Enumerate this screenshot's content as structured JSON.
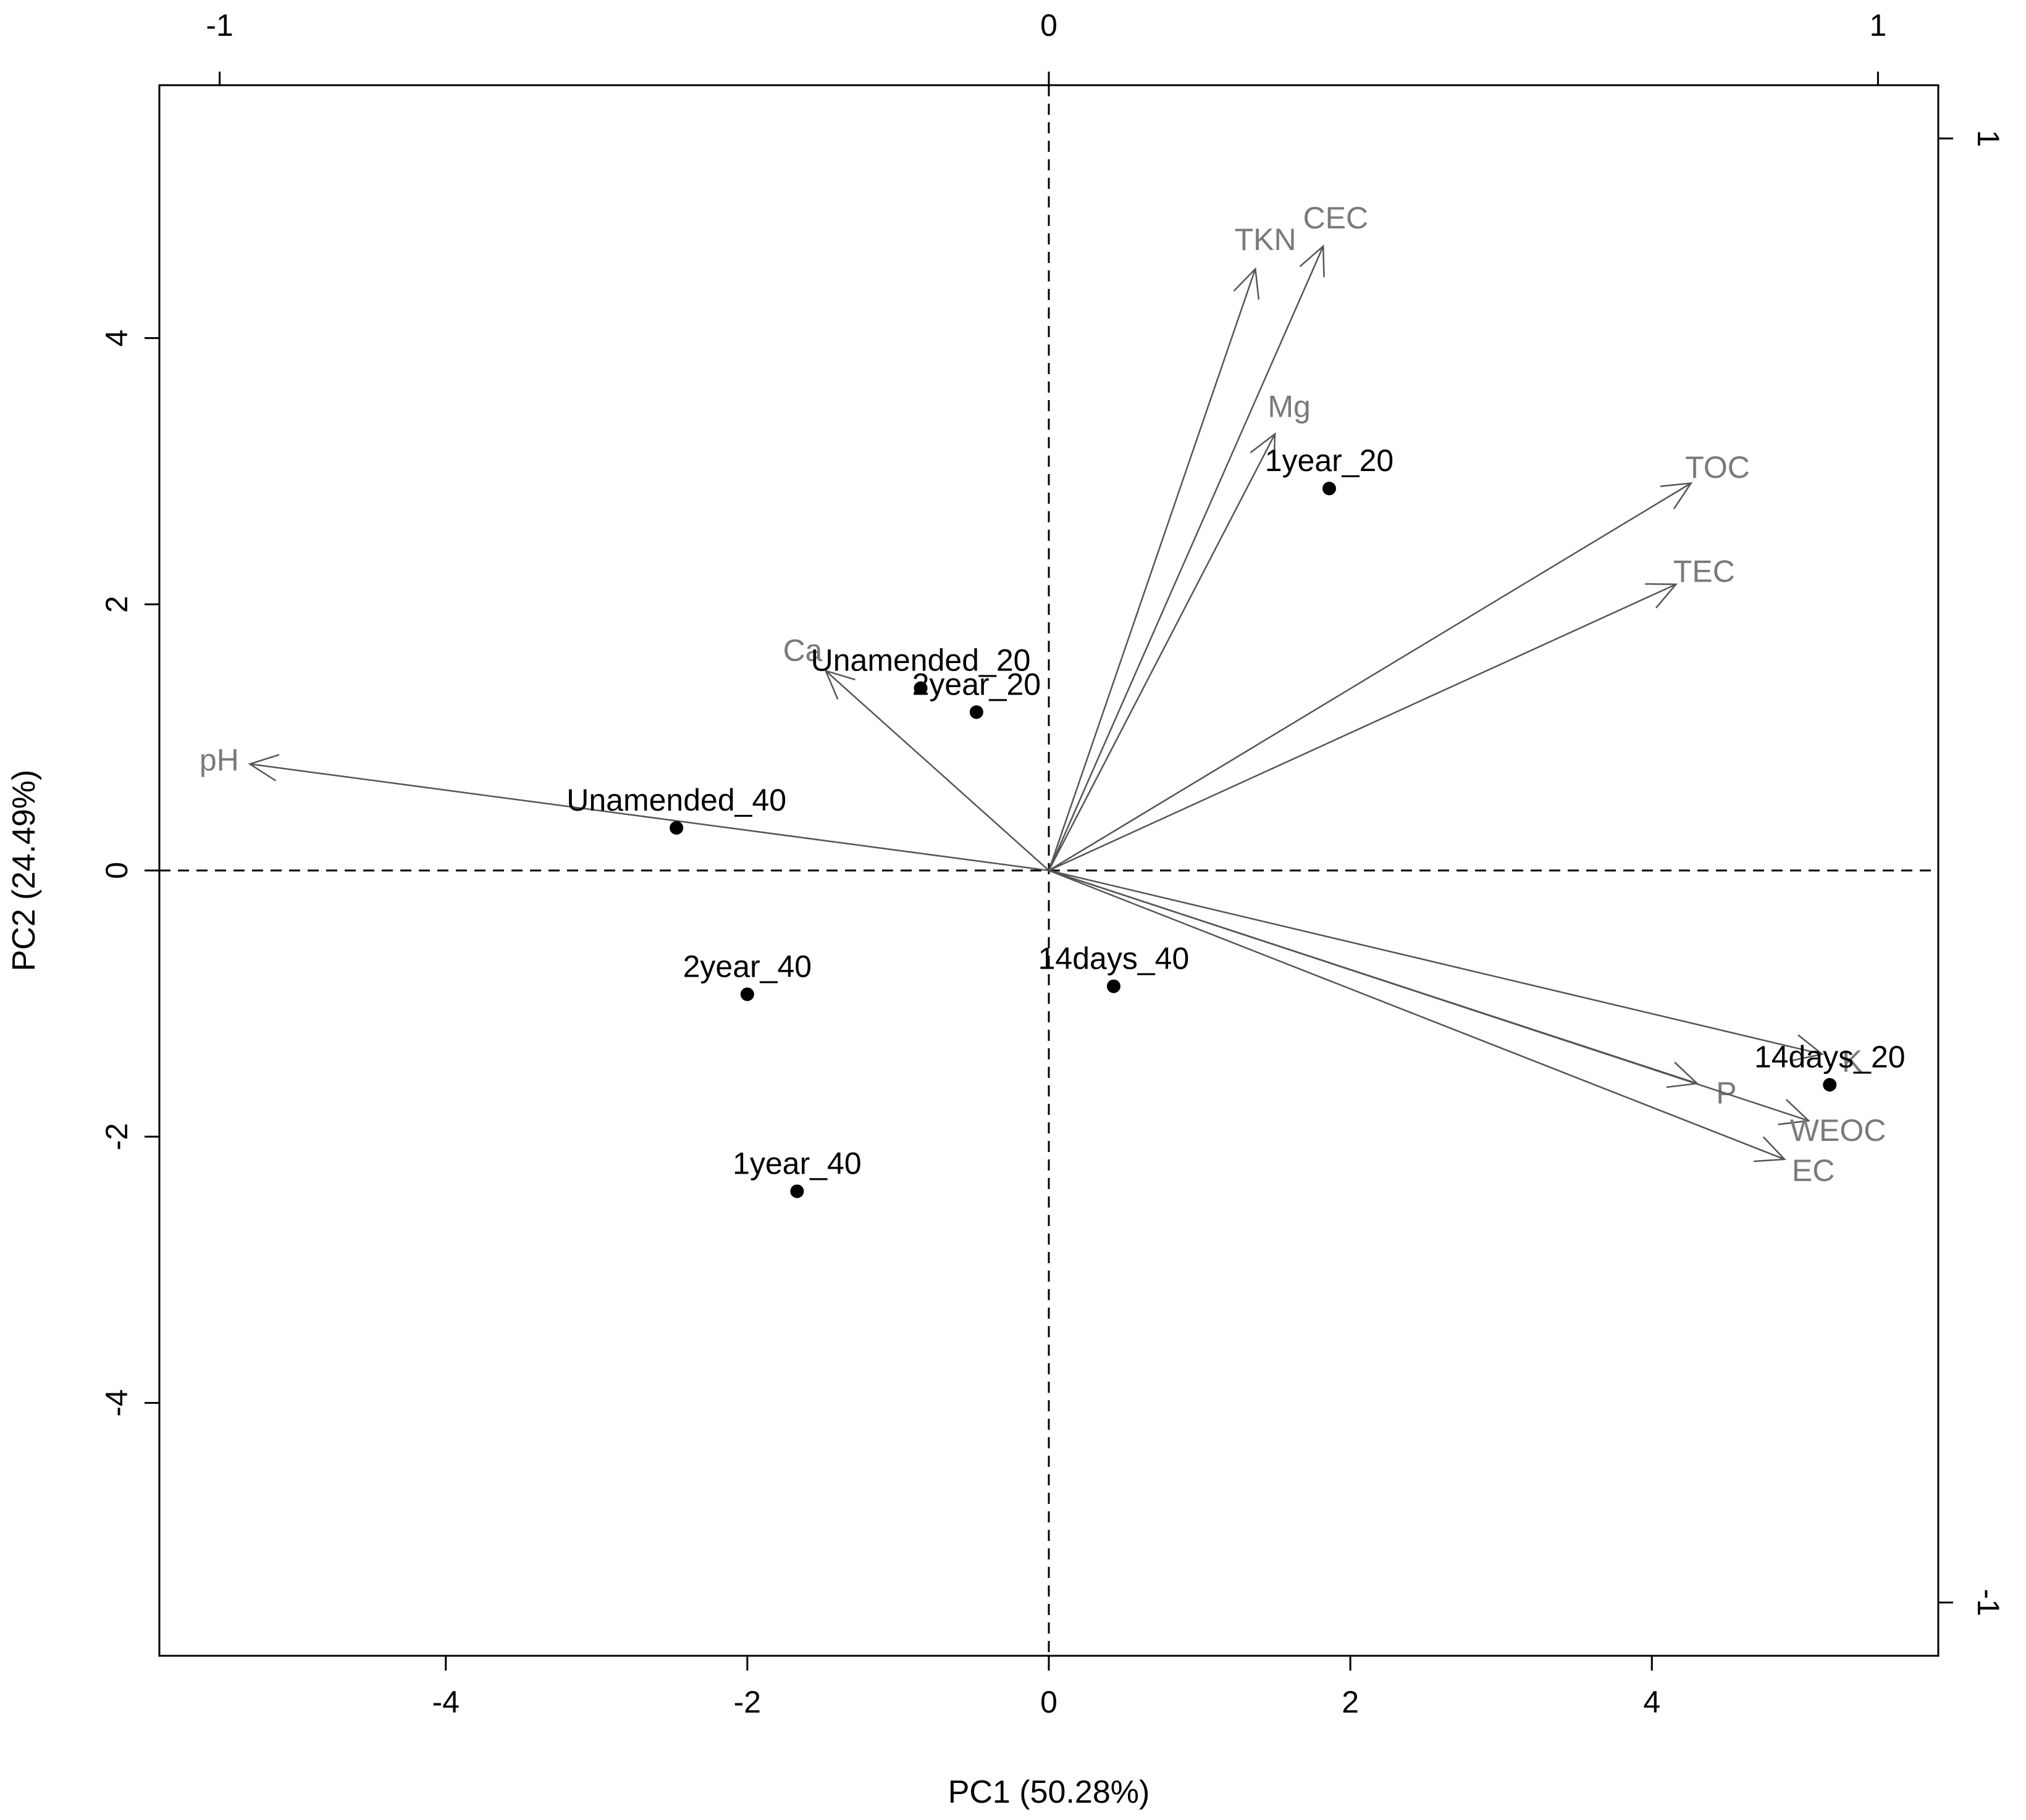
{
  "chart_data": {
    "type": "scatter",
    "subtype": "pca-biplot",
    "title": "",
    "xlabel": "PC1 (50.28%)",
    "ylabel": "PC2 (24.49%)",
    "xlim": [
      -5.9,
      5.9
    ],
    "ylim": [
      -5.9,
      5.9
    ],
    "x_ticks": [
      "-4",
      "-2",
      "0",
      "2",
      "4"
    ],
    "y_ticks": [
      "-4",
      "-2",
      "0",
      "2",
      "4"
    ],
    "top_ticks": [
      "-1",
      "0",
      "1"
    ],
    "right_ticks": [
      "-1",
      "1"
    ],
    "loading_scale": 5.5,
    "grid": false,
    "reference_lines": "dashed at x = 0 and y = 0",
    "colors": {
      "points": "#000000",
      "arrows": "#555555",
      "variable_labels": "#7a7a7a",
      "axes": "#000000"
    },
    "observations": [
      {
        "label": "Unamended_20",
        "x": -0.85,
        "y": 1.37
      },
      {
        "label": "2year_20",
        "x": -0.48,
        "y": 1.19
      },
      {
        "label": "Unamended_40",
        "x": -2.47,
        "y": 0.32
      },
      {
        "label": "1year_20",
        "x": 1.86,
        "y": 2.87
      },
      {
        "label": "14days_40",
        "x": 0.43,
        "y": -0.87
      },
      {
        "label": "2year_40",
        "x": -2.0,
        "y": -0.93
      },
      {
        "label": "1year_40",
        "x": -1.67,
        "y": -2.41
      },
      {
        "label": "14days_20",
        "x": 5.18,
        "y": -1.61
      }
    ],
    "variables": [
      {
        "label": "TKN",
        "x": 1.37,
        "y": 4.52
      },
      {
        "label": "CEC",
        "x": 1.82,
        "y": 4.69
      },
      {
        "label": "Mg",
        "x": 1.5,
        "y": 3.28
      },
      {
        "label": "TOC",
        "x": 4.26,
        "y": 2.91
      },
      {
        "label": "TEC",
        "x": 4.16,
        "y": 2.15
      },
      {
        "label": "Ca",
        "x": -1.48,
        "y": 1.5
      },
      {
        "label": "pH",
        "x": -5.3,
        "y": 0.8
      },
      {
        "label": "K",
        "x": 5.13,
        "y": -1.38
      },
      {
        "label": "P",
        "x": 4.3,
        "y": -1.6
      },
      {
        "label": "WEOC",
        "x": 5.04,
        "y": -1.88
      },
      {
        "label": "EC",
        "x": 4.88,
        "y": -2.17
      }
    ]
  }
}
